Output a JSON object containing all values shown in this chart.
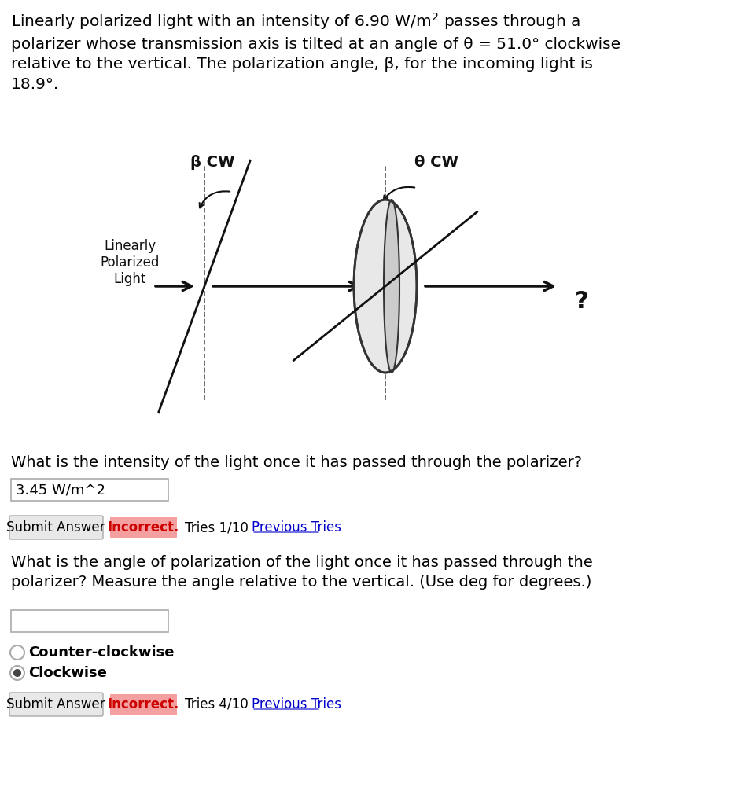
{
  "bg_color": "#f0f0f0",
  "title_text": "Linearly polarized light with an intensity of 6.90 W/m² passes through a\npolarizer whose transmission axis is tilted at an angle of θ = 51.0° clockwise\nrelative to the vertical. The polarization angle, β, for the incoming light is\n18.9°.",
  "diagram_label_beta": "β CW",
  "diagram_label_theta": "θ CW",
  "diagram_label_linearly": "Linearly\nPolarized\nLight",
  "diagram_label_question": "?",
  "q1_text": "What is the intensity of the light once it has passed through the polarizer?",
  "q1_answer": "3.45 W/m^2",
  "q1_button": "Submit Answer",
  "q1_feedback": "Incorrect.",
  "q1_tries": "Tries 1/10",
  "q1_link": "Previous Tries",
  "q2_text": "What is the angle of polarization of the light once it has passed through the\npolarizer? Measure the angle relative to the vertical. (Use deg for degrees.)",
  "q2_button": "Submit Answer",
  "q2_option1": "Counter-clockwise",
  "q2_option2": "Clockwise",
  "q2_feedback": "Incorrect.",
  "q2_tries": "Tries 4/10",
  "q2_link": "Previous Tries",
  "incorrect_bg": "#f4a0a0",
  "incorrect_text_color": "#cc0000",
  "link_color": "#0000cc",
  "text_color": "#000000",
  "white": "#ffffff"
}
